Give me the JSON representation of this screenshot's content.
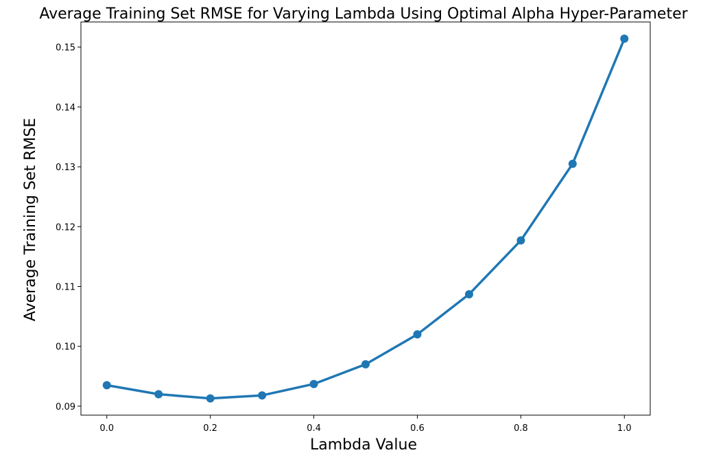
{
  "chart_data": {
    "type": "line",
    "title": "Average Training Set RMSE for Varying Lambda Using Optimal Alpha Hyper-Parameter",
    "xlabel": "Lambda Value",
    "ylabel": "Average Training Set RMSE",
    "x": [
      0.0,
      0.1,
      0.2,
      0.3,
      0.4,
      0.5,
      0.6,
      0.7,
      0.8,
      0.9,
      1.0
    ],
    "series": [
      {
        "values": [
          0.0935,
          0.092,
          0.0913,
          0.0918,
          0.0937,
          0.097,
          0.102,
          0.1087,
          0.1177,
          0.1305,
          0.1514
        ]
      }
    ],
    "xlim": [
      -0.05,
      1.05
    ],
    "ylim": [
      0.0885,
      0.1542
    ],
    "xticks": [
      "0.0",
      "0.2",
      "0.4",
      "0.6",
      "0.8",
      "1.0"
    ],
    "yticks": [
      "0.09",
      "0.10",
      "0.11",
      "0.12",
      "0.13",
      "0.14",
      "0.15"
    ],
    "grid": false,
    "legend": "none",
    "colors": {
      "line": "#1f77b4",
      "axes": "#000000",
      "background": "#ffffff"
    }
  }
}
